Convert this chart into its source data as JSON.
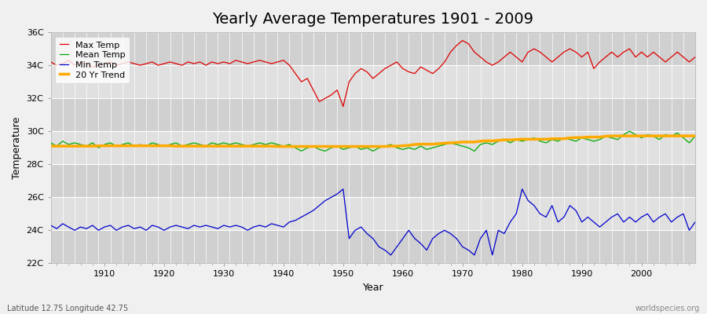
{
  "title": "Yearly Average Temperatures 1901 - 2009",
  "xlabel": "Year",
  "ylabel": "Temperature",
  "footnote_left": "Latitude 12.75 Longitude 42.75",
  "footnote_right": "worldspecies.org",
  "years": [
    1901,
    1902,
    1903,
    1904,
    1905,
    1906,
    1907,
    1908,
    1909,
    1910,
    1911,
    1912,
    1913,
    1914,
    1915,
    1916,
    1917,
    1918,
    1919,
    1920,
    1921,
    1922,
    1923,
    1924,
    1925,
    1926,
    1927,
    1928,
    1929,
    1930,
    1931,
    1932,
    1933,
    1934,
    1935,
    1936,
    1937,
    1938,
    1939,
    1940,
    1941,
    1942,
    1943,
    1944,
    1945,
    1946,
    1947,
    1948,
    1949,
    1950,
    1951,
    1952,
    1953,
    1954,
    1955,
    1956,
    1957,
    1958,
    1959,
    1960,
    1961,
    1962,
    1963,
    1964,
    1965,
    1966,
    1967,
    1968,
    1969,
    1970,
    1971,
    1972,
    1973,
    1974,
    1975,
    1976,
    1977,
    1978,
    1979,
    1980,
    1981,
    1982,
    1983,
    1984,
    1985,
    1986,
    1987,
    1988,
    1989,
    1990,
    1991,
    1992,
    1993,
    1994,
    1995,
    1996,
    1997,
    1998,
    1999,
    2000,
    2001,
    2002,
    2003,
    2004,
    2005,
    2006,
    2007,
    2008,
    2009
  ],
  "max_temp": [
    34.2,
    34.0,
    34.1,
    34.3,
    34.0,
    34.2,
    34.1,
    33.9,
    34.0,
    34.1,
    34.2,
    34.0,
    34.1,
    34.2,
    34.1,
    34.0,
    34.1,
    34.2,
    34.0,
    34.1,
    34.2,
    34.1,
    34.0,
    34.2,
    34.1,
    34.2,
    34.0,
    34.2,
    34.1,
    34.2,
    34.1,
    34.3,
    34.2,
    34.1,
    34.2,
    34.3,
    34.2,
    34.1,
    34.2,
    34.3,
    34.0,
    33.5,
    33.0,
    33.2,
    32.5,
    31.8,
    32.0,
    32.2,
    32.5,
    31.5,
    33.0,
    33.5,
    33.8,
    33.6,
    33.2,
    33.5,
    33.8,
    34.0,
    34.2,
    33.8,
    33.6,
    33.5,
    33.9,
    33.7,
    33.5,
    33.8,
    34.2,
    34.8,
    35.2,
    35.5,
    35.3,
    34.8,
    34.5,
    34.2,
    34.0,
    34.2,
    34.5,
    34.8,
    34.5,
    34.2,
    34.8,
    35.0,
    34.8,
    34.5,
    34.2,
    34.5,
    34.8,
    35.0,
    34.8,
    34.5,
    34.8,
    33.8,
    34.2,
    34.5,
    34.8,
    34.5,
    34.8,
    35.0,
    34.5,
    34.8,
    34.5,
    34.8,
    34.5,
    34.2,
    34.5,
    34.8,
    34.5,
    34.2,
    34.5
  ],
  "mean_temp": [
    29.3,
    29.1,
    29.4,
    29.2,
    29.3,
    29.2,
    29.1,
    29.3,
    29.0,
    29.2,
    29.3,
    29.1,
    29.2,
    29.3,
    29.1,
    29.2,
    29.1,
    29.3,
    29.2,
    29.1,
    29.2,
    29.3,
    29.1,
    29.2,
    29.3,
    29.2,
    29.1,
    29.3,
    29.2,
    29.3,
    29.2,
    29.3,
    29.2,
    29.1,
    29.2,
    29.3,
    29.2,
    29.3,
    29.2,
    29.1,
    29.2,
    29.0,
    28.8,
    29.0,
    29.1,
    28.9,
    28.8,
    29.0,
    29.1,
    28.9,
    29.0,
    29.1,
    28.9,
    29.0,
    28.8,
    29.0,
    29.1,
    29.2,
    29.0,
    28.9,
    29.0,
    28.9,
    29.1,
    28.9,
    29.0,
    29.1,
    29.2,
    29.3,
    29.2,
    29.1,
    29.0,
    28.8,
    29.2,
    29.3,
    29.2,
    29.4,
    29.5,
    29.3,
    29.5,
    29.4,
    29.5,
    29.6,
    29.4,
    29.3,
    29.5,
    29.4,
    29.6,
    29.5,
    29.4,
    29.6,
    29.5,
    29.4,
    29.5,
    29.7,
    29.6,
    29.5,
    29.8,
    30.0,
    29.8,
    29.6,
    29.8,
    29.7,
    29.5,
    29.8,
    29.7,
    29.9,
    29.6,
    29.3,
    29.7
  ],
  "min_temp": [
    24.3,
    24.1,
    24.4,
    24.2,
    24.0,
    24.2,
    24.1,
    24.3,
    24.0,
    24.2,
    24.3,
    24.0,
    24.2,
    24.3,
    24.1,
    24.2,
    24.0,
    24.3,
    24.2,
    24.0,
    24.2,
    24.3,
    24.2,
    24.1,
    24.3,
    24.2,
    24.3,
    24.2,
    24.1,
    24.3,
    24.2,
    24.3,
    24.2,
    24.0,
    24.2,
    24.3,
    24.2,
    24.4,
    24.3,
    24.2,
    24.5,
    24.6,
    24.8,
    25.0,
    25.2,
    25.5,
    25.8,
    26.0,
    26.2,
    26.5,
    23.5,
    24.0,
    24.2,
    23.8,
    23.5,
    23.0,
    22.8,
    22.5,
    23.0,
    23.5,
    24.0,
    23.5,
    23.2,
    22.8,
    23.5,
    23.8,
    24.0,
    23.8,
    23.5,
    23.0,
    22.8,
    22.5,
    23.5,
    24.0,
    22.5,
    24.0,
    23.8,
    24.5,
    25.0,
    26.5,
    25.8,
    25.5,
    25.0,
    24.8,
    25.5,
    24.5,
    24.8,
    25.5,
    25.2,
    24.5,
    24.8,
    24.5,
    24.2,
    24.5,
    24.8,
    25.0,
    24.5,
    24.8,
    24.5,
    24.8,
    25.0,
    24.5,
    24.8,
    25.0,
    24.5,
    24.8,
    25.0,
    24.0,
    24.5
  ],
  "trend": [
    29.1,
    29.1,
    29.1,
    29.1,
    29.1,
    29.1,
    29.1,
    29.1,
    29.12,
    29.12,
    29.12,
    29.12,
    29.12,
    29.12,
    29.12,
    29.12,
    29.12,
    29.12,
    29.12,
    29.12,
    29.12,
    29.1,
    29.1,
    29.1,
    29.1,
    29.1,
    29.1,
    29.1,
    29.1,
    29.1,
    29.1,
    29.1,
    29.1,
    29.1,
    29.1,
    29.1,
    29.1,
    29.1,
    29.08,
    29.08,
    29.08,
    29.08,
    29.08,
    29.08,
    29.08,
    29.08,
    29.08,
    29.08,
    29.08,
    29.08,
    29.08,
    29.08,
    29.08,
    29.08,
    29.08,
    29.08,
    29.08,
    29.1,
    29.1,
    29.12,
    29.15,
    29.2,
    29.22,
    29.22,
    29.22,
    29.25,
    29.28,
    29.3,
    29.32,
    29.35,
    29.35,
    29.35,
    29.4,
    29.42,
    29.42,
    29.45,
    29.48,
    29.48,
    29.5,
    29.52,
    29.52,
    29.52,
    29.52,
    29.52,
    29.55,
    29.55,
    29.55,
    29.6,
    29.62,
    29.62,
    29.65,
    29.65,
    29.65,
    29.7,
    29.72,
    29.72,
    29.72,
    29.72,
    29.72,
    29.72,
    29.72,
    29.72,
    29.72,
    29.72,
    29.72,
    29.72,
    29.72,
    29.72,
    29.72
  ],
  "ylim": [
    22,
    36
  ],
  "yticks": [
    22,
    24,
    26,
    28,
    30,
    32,
    34,
    36
  ],
  "ytick_labels": [
    "22C",
    "24C",
    "26C",
    "28C",
    "30C",
    "32C",
    "34C",
    "36C"
  ],
  "xlim": [
    1901,
    2009
  ],
  "xticks": [
    1910,
    1920,
    1930,
    1940,
    1950,
    1960,
    1970,
    1980,
    1990,
    2000
  ],
  "fig_bg_color": "#f0f0f0",
  "plot_bg_color": "#e0e0e0",
  "band_color_dark": "#d0d0d0",
  "max_color": "#dd0000",
  "mean_color": "#00aa00",
  "min_color": "#0000cc",
  "trend_color": "#ffaa00",
  "grid_color": "#ffffff",
  "title_fontsize": 14,
  "axis_fontsize": 9,
  "tick_fontsize": 8,
  "legend_fontsize": 8
}
